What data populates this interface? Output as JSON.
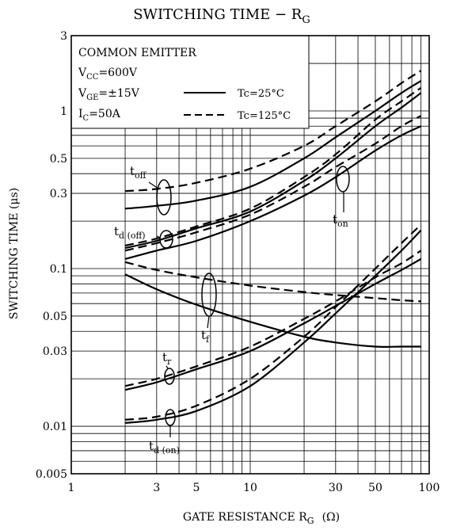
{
  "chart_data": {
    "type": "line",
    "title": "SWITCHING TIME − R",
    "title_sub": "G",
    "xlabel": "GATE RESISTANCE  R",
    "xlabel_sub": "G",
    "xlabel_unit": "(Ω)",
    "ylabel": "SWITCHING TIME   (μs)",
    "xscale": "log",
    "yscale": "log",
    "xlim": [
      1,
      100
    ],
    "ylim": [
      0.005,
      3
    ],
    "grid": true,
    "x_ticks": [
      "1",
      "3",
      "5",
      "10",
      "30",
      "50",
      "100"
    ],
    "x_tick_values": [
      1,
      3,
      5,
      10,
      30,
      50,
      100
    ],
    "y_ticks": [
      "0.005",
      "0.01",
      "0.03",
      "0.05",
      "0.1",
      "0.3",
      "0.5",
      "1",
      "3"
    ],
    "y_tick_values": [
      0.005,
      0.01,
      0.03,
      0.05,
      0.1,
      0.3,
      0.5,
      1,
      3
    ],
    "conditions": {
      "line1": "COMMON EMITTER",
      "line2_main": "V",
      "line2_sub": "CC",
      "line2_rest": "=600V",
      "line3_main": "V",
      "line3_sub": "GE",
      "line3_rest": "=±15V",
      "line4_main": "I",
      "line4_sub": "C",
      "line4_rest": "=50A"
    },
    "legend": {
      "solid_label": "Tc=25°C",
      "dashed_label": "Tc=125°C",
      "placement": "top-left"
    },
    "annotations": {
      "toff_main": "t",
      "toff_sub": "off",
      "ton_main": "t",
      "ton_sub": "on",
      "tdoff_main": "t",
      "tdoff_sub": "d (off)",
      "tf_main": "t",
      "tf_sub": "f",
      "tr_main": "t",
      "tr_sub": "r",
      "tdon_main": "t",
      "tdon_sub": "d (on)"
    },
    "series": [
      {
        "label_key": "toff",
        "temp_c": 25,
        "style": "solid",
        "x": [
          2,
          3,
          5,
          10,
          20,
          30,
          50,
          70,
          90
        ],
        "y": [
          0.24,
          0.25,
          0.27,
          0.33,
          0.5,
          0.68,
          1.0,
          1.3,
          1.55
        ]
      },
      {
        "label_key": "toff",
        "temp_c": 125,
        "style": "dashed",
        "x": [
          2,
          3,
          5,
          10,
          20,
          30,
          50,
          70,
          90
        ],
        "y": [
          0.31,
          0.32,
          0.35,
          0.43,
          0.6,
          0.8,
          1.15,
          1.5,
          1.8
        ]
      },
      {
        "label_key": "ton",
        "temp_c": 25,
        "style": "solid",
        "x": [
          2,
          3,
          5,
          10,
          20,
          30,
          50,
          70,
          90
        ],
        "y": [
          0.115,
          0.13,
          0.15,
          0.2,
          0.29,
          0.38,
          0.56,
          0.7,
          0.8
        ]
      },
      {
        "label_key": "ton",
        "temp_c": 125,
        "style": "dashed",
        "x": [
          2,
          3,
          5,
          10,
          20,
          30,
          50,
          70,
          90
        ],
        "y": [
          0.13,
          0.145,
          0.17,
          0.22,
          0.33,
          0.44,
          0.62,
          0.8,
          0.93
        ]
      },
      {
        "label_key": "tdoff",
        "temp_c": 25,
        "style": "solid",
        "x": [
          2,
          3,
          5,
          10,
          20,
          30,
          50,
          70,
          90
        ],
        "y": [
          0.135,
          0.15,
          0.18,
          0.23,
          0.36,
          0.5,
          0.8,
          1.05,
          1.3
        ]
      },
      {
        "label_key": "tdoff",
        "temp_c": 125,
        "style": "dashed",
        "x": [
          2,
          3,
          5,
          10,
          20,
          30,
          50,
          70,
          90
        ],
        "y": [
          0.14,
          0.155,
          0.185,
          0.24,
          0.38,
          0.53,
          0.88,
          1.15,
          1.4
        ]
      },
      {
        "label_key": "tf",
        "temp_c": 25,
        "style": "solid",
        "x": [
          2,
          3,
          5,
          10,
          20,
          30,
          50,
          70,
          90
        ],
        "y": [
          0.092,
          0.074,
          0.059,
          0.046,
          0.037,
          0.034,
          0.032,
          0.032,
          0.032
        ]
      },
      {
        "label_key": "tf",
        "temp_c": 125,
        "style": "dashed",
        "x": [
          2,
          3,
          5,
          10,
          20,
          30,
          50,
          70,
          90
        ],
        "y": [
          0.11,
          0.098,
          0.088,
          0.078,
          0.071,
          0.068,
          0.065,
          0.063,
          0.062
        ]
      },
      {
        "label_key": "tr",
        "temp_c": 25,
        "style": "solid",
        "x": [
          2,
          3,
          5,
          10,
          20,
          30,
          50,
          70,
          90
        ],
        "y": [
          0.017,
          0.019,
          0.023,
          0.03,
          0.045,
          0.058,
          0.08,
          0.098,
          0.115
        ]
      },
      {
        "label_key": "tr",
        "temp_c": 125,
        "style": "dashed",
        "x": [
          2,
          3,
          5,
          10,
          20,
          30,
          50,
          70,
          90
        ],
        "y": [
          0.018,
          0.02,
          0.024,
          0.032,
          0.048,
          0.062,
          0.088,
          0.108,
          0.13
        ]
      },
      {
        "label_key": "tdon",
        "temp_c": 25,
        "style": "solid",
        "x": [
          2,
          3,
          5,
          10,
          20,
          30,
          50,
          70,
          90
        ],
        "y": [
          0.0105,
          0.011,
          0.0125,
          0.018,
          0.034,
          0.052,
          0.09,
          0.13,
          0.175
        ]
      },
      {
        "label_key": "tdon",
        "temp_c": 125,
        "style": "dashed",
        "x": [
          2,
          3,
          5,
          10,
          20,
          30,
          50,
          70,
          90
        ],
        "y": [
          0.011,
          0.0115,
          0.0135,
          0.02,
          0.037,
          0.057,
          0.1,
          0.145,
          0.19
        ]
      }
    ]
  }
}
